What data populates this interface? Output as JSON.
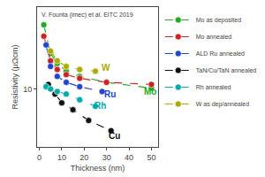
{
  "chart_data": {
    "type": "line",
    "log": "y",
    "xlabel": "Thickness (nm)",
    "ylabel": "Resistivity (μΩcm)",
    "xlim": [
      -1,
      53
    ],
    "ylim": [
      3.0,
      55
    ],
    "xticks": [
      0,
      10,
      20,
      30,
      40,
      50
    ],
    "yticks": [
      10
    ],
    "grid": false,
    "legend": "upper right",
    "marker": "circle",
    "line_style": "dashed",
    "series": [
      {
        "name": "Mo as deposited",
        "color": "#22aa22",
        "x": [
          2,
          5,
          8,
          12,
          18,
          30,
          50
        ],
        "values": [
          38,
          21,
          17,
          14.5,
          13,
          11.5,
          10.2
        ]
      },
      {
        "name": "Mo annealed",
        "color": "#cc2222",
        "x": [
          2,
          5,
          8,
          12,
          18,
          30,
          50
        ],
        "values": [
          30,
          18,
          15,
          13.5,
          12.5,
          11.5,
          11.0
        ]
      },
      {
        "name": "ALD Ru annealed",
        "color": "#2244cc",
        "x": [
          3,
          5,
          8,
          12,
          18,
          28
        ],
        "values": [
          25,
          16,
          13,
          11.5,
          10.5,
          9.5
        ]
      },
      {
        "name": "TaN/Cu/TaN annealed",
        "color": "#111111",
        "x": [
          4,
          7,
          10,
          15,
          22,
          32
        ],
        "values": [
          11,
          9,
          7.5,
          6.5,
          5.2,
          4.2
        ]
      },
      {
        "name": "Rh annealed",
        "color": "#00aaaa",
        "x": [
          3,
          5,
          8,
          12,
          18,
          25
        ],
        "values": [
          10.5,
          10,
          9.5,
          9.0,
          8.0,
          7.0
        ]
      },
      {
        "name": "W as dep/annealed",
        "color": "#aaaa00",
        "x": [
          5,
          8,
          12,
          18,
          25
        ],
        "values": [
          22,
          18,
          16,
          15,
          14.5
        ]
      }
    ],
    "annotations": [
      {
        "text": "W",
        "x": 27,
        "y": 15.5,
        "color": "#aaaa00"
      },
      {
        "text": "Ru",
        "x": 28,
        "y": 9.0,
        "color": "#2244cc"
      },
      {
        "text": "Rh",
        "x": 24,
        "y": 7.0,
        "color": "#00aaaa"
      },
      {
        "text": "Mo",
        "x": 46,
        "y": 9.5,
        "color": "#22aa22"
      },
      {
        "text": "Cu",
        "x": 30,
        "y": 3.8,
        "color": "#111111"
      },
      {
        "text": "V. Founta (imec) et al. EITC 2019",
        "color": "#444444"
      }
    ]
  }
}
